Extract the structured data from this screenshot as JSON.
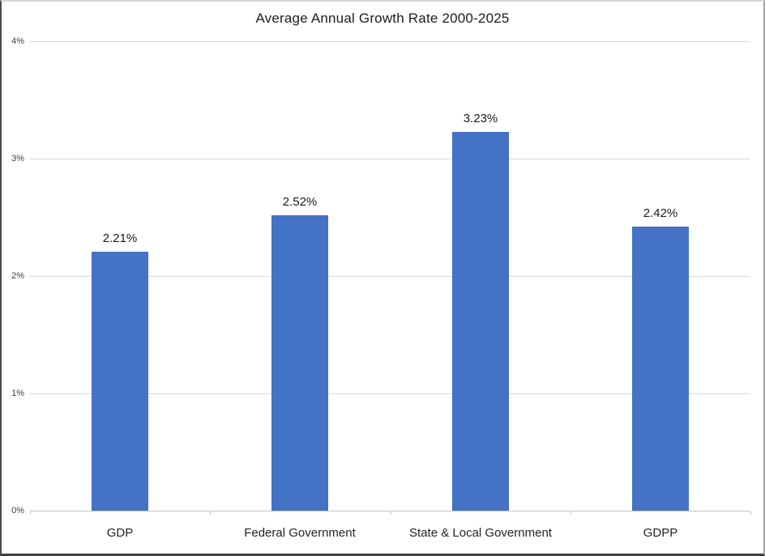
{
  "chart_data": {
    "type": "bar",
    "title": "Average Annual Growth Rate 2000-2025",
    "categories": [
      "GDP",
      "Federal Government",
      "State & Local Government",
      "GDPP"
    ],
    "values": [
      2.21,
      2.52,
      3.23,
      2.42
    ],
    "data_labels": [
      "2.21%",
      "2.52%",
      "3.23%",
      "2.42%"
    ],
    "y_ticks": [
      {
        "value": 0,
        "label": "0%"
      },
      {
        "value": 1,
        "label": "1%"
      },
      {
        "value": 2,
        "label": "2%"
      },
      {
        "value": 3,
        "label": "3%"
      },
      {
        "value": 4,
        "label": "4%"
      }
    ],
    "ylim": [
      0,
      4
    ],
    "xlabel": "",
    "ylabel": "",
    "grid": true,
    "legend": false,
    "bar_color": "#4472C4",
    "gridline_color": "#d9d9d9",
    "axis_color": "#c6c6c6",
    "background_color": "#ffffff"
  }
}
